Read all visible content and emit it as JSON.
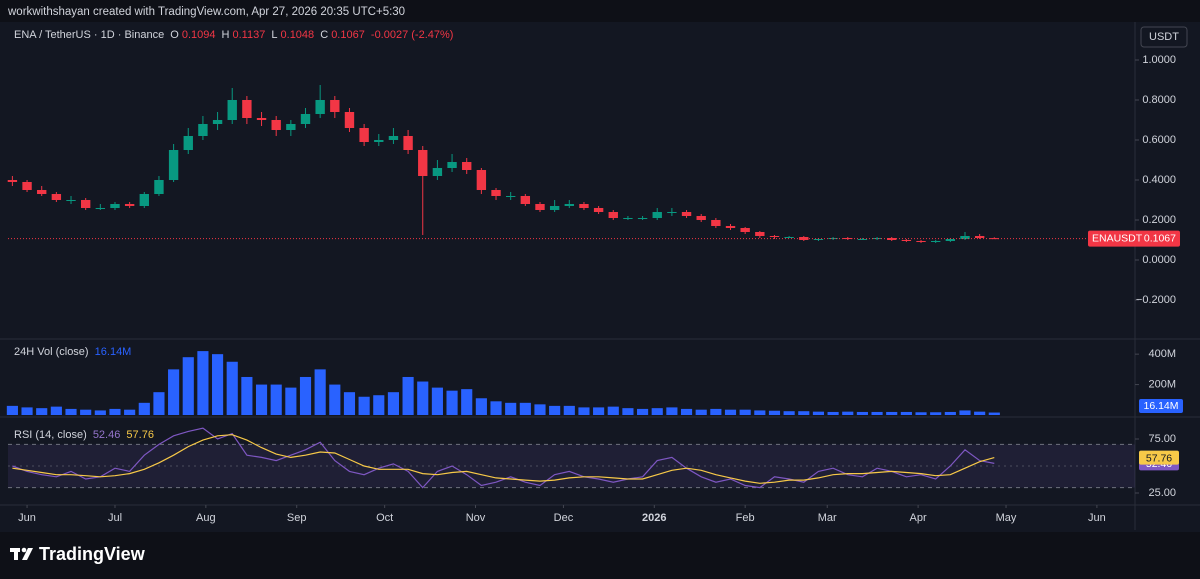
{
  "header": {
    "attribution": "workwithshayan created with TradingView.com, Apr 27, 2026 20:35 UTC+5:30",
    "symbol": "ENA / TetherUS · 1D · Binance",
    "change": "-0.0027 (-2.47%)",
    "currency": "USDT",
    "ticker": "ENAUSDT"
  },
  "chart_data": [
    {
      "type": "candlestick",
      "labels": {
        "open": "O",
        "high": "H",
        "low": "L",
        "close": "C"
      },
      "up_color": "#089981",
      "down_color": "#f23645",
      "x": [
        -5,
        0,
        5,
        10,
        15,
        20,
        25,
        30,
        35,
        40,
        45,
        50,
        55,
        60,
        65,
        70,
        75,
        80,
        85,
        90,
        95,
        100,
        105,
        110,
        115,
        120,
        125,
        130,
        135,
        140,
        145,
        150,
        155,
        160,
        165,
        170,
        175,
        180,
        185,
        190,
        195,
        200,
        205,
        210,
        215,
        220,
        225,
        230,
        235,
        240,
        245,
        250,
        255,
        260,
        265,
        270,
        275,
        280,
        285,
        290,
        295,
        300,
        305,
        310,
        315,
        320,
        325,
        330
      ],
      "open": [
        0.4,
        0.39,
        0.35,
        0.33,
        0.3,
        0.3,
        0.26,
        0.26,
        0.28,
        0.27,
        0.33,
        0.4,
        0.55,
        0.62,
        0.68,
        0.7,
        0.8,
        0.71,
        0.7,
        0.65,
        0.68,
        0.73,
        0.8,
        0.74,
        0.66,
        0.59,
        0.6,
        0.62,
        0.55,
        0.42,
        0.46,
        0.49,
        0.45,
        0.35,
        0.32,
        0.32,
        0.28,
        0.25,
        0.27,
        0.28,
        0.26,
        0.24,
        0.21,
        0.21,
        0.21,
        0.24,
        0.24,
        0.22,
        0.2,
        0.17,
        0.16,
        0.14,
        0.12,
        0.115,
        0.115,
        0.1,
        0.105,
        0.11,
        0.105,
        0.105,
        0.11,
        0.1,
        0.095,
        0.09,
        0.095,
        0.105,
        0.12,
        0.1094
      ],
      "high": [
        0.42,
        0.4,
        0.37,
        0.34,
        0.32,
        0.31,
        0.28,
        0.29,
        0.29,
        0.34,
        0.42,
        0.58,
        0.66,
        0.72,
        0.74,
        0.86,
        0.82,
        0.74,
        0.72,
        0.7,
        0.76,
        0.875,
        0.82,
        0.76,
        0.68,
        0.63,
        0.66,
        0.65,
        0.57,
        0.5,
        0.53,
        0.51,
        0.46,
        0.36,
        0.34,
        0.33,
        0.29,
        0.3,
        0.3,
        0.29,
        0.27,
        0.25,
        0.22,
        0.22,
        0.26,
        0.26,
        0.25,
        0.23,
        0.21,
        0.18,
        0.165,
        0.145,
        0.125,
        0.12,
        0.12,
        0.11,
        0.115,
        0.115,
        0.11,
        0.115,
        0.115,
        0.105,
        0.1,
        0.1,
        0.11,
        0.14,
        0.13,
        0.1137
      ],
      "low": [
        0.37,
        0.34,
        0.32,
        0.29,
        0.28,
        0.25,
        0.25,
        0.25,
        0.26,
        0.26,
        0.32,
        0.39,
        0.53,
        0.6,
        0.65,
        0.68,
        0.68,
        0.67,
        0.62,
        0.62,
        0.66,
        0.71,
        0.71,
        0.64,
        0.57,
        0.57,
        0.58,
        0.53,
        0.125,
        0.4,
        0.44,
        0.43,
        0.33,
        0.3,
        0.3,
        0.27,
        0.24,
        0.24,
        0.26,
        0.25,
        0.23,
        0.2,
        0.2,
        0.2,
        0.2,
        0.22,
        0.21,
        0.19,
        0.16,
        0.15,
        0.13,
        0.11,
        0.105,
        0.11,
        0.095,
        0.095,
        0.1,
        0.1,
        0.1,
        0.1,
        0.095,
        0.09,
        0.085,
        0.085,
        0.09,
        0.1,
        0.105,
        0.1048
      ],
      "close": [
        0.39,
        0.35,
        0.33,
        0.3,
        0.3,
        0.26,
        0.26,
        0.28,
        0.27,
        0.33,
        0.4,
        0.55,
        0.62,
        0.68,
        0.7,
        0.8,
        0.71,
        0.7,
        0.65,
        0.68,
        0.73,
        0.8,
        0.74,
        0.66,
        0.59,
        0.6,
        0.62,
        0.55,
        0.42,
        0.46,
        0.49,
        0.45,
        0.35,
        0.32,
        0.32,
        0.28,
        0.25,
        0.27,
        0.28,
        0.26,
        0.24,
        0.21,
        0.21,
        0.21,
        0.24,
        0.24,
        0.22,
        0.2,
        0.17,
        0.16,
        0.14,
        0.12,
        0.115,
        0.115,
        0.1,
        0.105,
        0.11,
        0.105,
        0.105,
        0.11,
        0.1,
        0.095,
        0.09,
        0.095,
        0.105,
        0.12,
        0.11,
        0.1067
      ],
      "xlim": [
        -6.5,
        378
      ],
      "ylim": [
        -0.39,
        1.16
      ],
      "yticks": [
        {
          "value": 1,
          "label": "1.0000"
        },
        {
          "value": 0.8,
          "label": "0.8000"
        },
        {
          "value": 0.6,
          "label": "0.6000"
        },
        {
          "value": 0.4,
          "label": "0.4000"
        },
        {
          "value": 0.2,
          "label": "0.2000"
        },
        {
          "value": 0,
          "label": "0.0000"
        },
        {
          "value": -0.2,
          "label": "−0.2000"
        }
      ],
      "xticks": [
        {
          "value": 0,
          "label": "Jun"
        },
        {
          "value": 30,
          "label": "Jul"
        },
        {
          "value": 61,
          "label": "Aug"
        },
        {
          "value": 92,
          "label": "Sep"
        },
        {
          "value": 122,
          "label": "Oct"
        },
        {
          "value": 153,
          "label": "Nov"
        },
        {
          "value": 183,
          "label": "Dec"
        },
        {
          "value": 214,
          "label": "2026"
        },
        {
          "value": 245,
          "label": "Feb"
        },
        {
          "value": 273,
          "label": "Mar"
        },
        {
          "value": 304,
          "label": "Apr"
        },
        {
          "value": 334,
          "label": "May"
        },
        {
          "value": 365,
          "label": "Jun"
        }
      ]
    },
    {
      "type": "bar",
      "title": "24H Vol (close)",
      "color": "#2962ff",
      "x": [
        -5,
        0,
        5,
        10,
        15,
        20,
        25,
        30,
        35,
        40,
        45,
        50,
        55,
        60,
        65,
        70,
        75,
        80,
        85,
        90,
        95,
        100,
        105,
        110,
        115,
        120,
        125,
        130,
        135,
        140,
        145,
        150,
        155,
        160,
        165,
        170,
        175,
        180,
        185,
        190,
        195,
        200,
        205,
        210,
        215,
        220,
        225,
        230,
        235,
        240,
        245,
        250,
        255,
        260,
        265,
        270,
        275,
        280,
        285,
        290,
        295,
        300,
        305,
        310,
        315,
        320,
        325,
        330
      ],
      "values": [
        60,
        50,
        45,
        55,
        40,
        35,
        30,
        40,
        35,
        80,
        150,
        300,
        380,
        420,
        400,
        350,
        250,
        200,
        200,
        180,
        250,
        300,
        200,
        150,
        120,
        130,
        150,
        250,
        220,
        180,
        160,
        170,
        110,
        90,
        80,
        80,
        70,
        60,
        60,
        50,
        50,
        55,
        45,
        40,
        45,
        50,
        40,
        35,
        40,
        35,
        35,
        30,
        28,
        25,
        25,
        22,
        20,
        22,
        20,
        20,
        20,
        20,
        18,
        18,
        20,
        30,
        22,
        16.14
      ],
      "last_value_label": "16.14M",
      "xlim": [
        -6.5,
        378
      ],
      "ylim": [
        0,
        493
      ],
      "yticks": [
        {
          "value": 400,
          "label": "400M"
        },
        {
          "value": 200,
          "label": "200M"
        }
      ]
    },
    {
      "type": "line",
      "title": "RSI (14, close)",
      "x": [
        -5,
        0,
        5,
        10,
        15,
        20,
        25,
        30,
        35,
        40,
        45,
        50,
        55,
        60,
        65,
        70,
        75,
        80,
        85,
        90,
        95,
        100,
        105,
        110,
        115,
        120,
        125,
        130,
        135,
        140,
        145,
        150,
        155,
        160,
        165,
        170,
        175,
        180,
        185,
        190,
        195,
        200,
        205,
        210,
        215,
        220,
        225,
        230,
        235,
        240,
        245,
        250,
        255,
        260,
        265,
        270,
        275,
        280,
        285,
        290,
        295,
        300,
        305,
        310,
        315,
        320,
        325,
        330
      ],
      "series": [
        {
          "color": "#7e57c2",
          "values": [
            50,
            45,
            42,
            40,
            45,
            38,
            40,
            48,
            45,
            60,
            70,
            78,
            82,
            85,
            75,
            80,
            60,
            58,
            55,
            60,
            65,
            72,
            55,
            45,
            42,
            48,
            52,
            45,
            30,
            45,
            50,
            42,
            32,
            35,
            40,
            35,
            32,
            42,
            45,
            40,
            38,
            35,
            38,
            40,
            55,
            58,
            48,
            40,
            35,
            38,
            32,
            30,
            40,
            38,
            35,
            45,
            48,
            42,
            40,
            48,
            45,
            40,
            42,
            38,
            50,
            65,
            55,
            52.46
          ]
        },
        {
          "color": "#f7c948",
          "values": [
            48,
            46,
            44,
            42,
            42,
            41,
            40,
            41,
            43,
            47,
            53,
            60,
            68,
            74,
            78,
            79,
            74,
            67,
            61,
            58,
            60,
            63,
            62,
            56,
            50,
            47,
            47,
            47,
            43,
            42,
            44,
            45,
            42,
            39,
            38,
            37,
            36,
            37,
            39,
            40,
            40,
            39,
            38,
            38,
            42,
            46,
            48,
            46,
            42,
            39,
            36,
            34,
            35,
            37,
            37,
            39,
            42,
            43,
            43,
            44,
            45,
            44,
            43,
            41,
            42,
            48,
            54,
            57.76
          ]
        }
      ],
      "hlines": [
        70,
        50,
        30
      ],
      "xlim": [
        -6.5,
        378
      ],
      "ylim": [
        13.9,
        92.6
      ],
      "yticks": [
        {
          "value": 75,
          "label": "75.00"
        },
        {
          "value": 25,
          "label": "25.00"
        }
      ]
    }
  ],
  "footer": {
    "brand": "TradingView"
  }
}
